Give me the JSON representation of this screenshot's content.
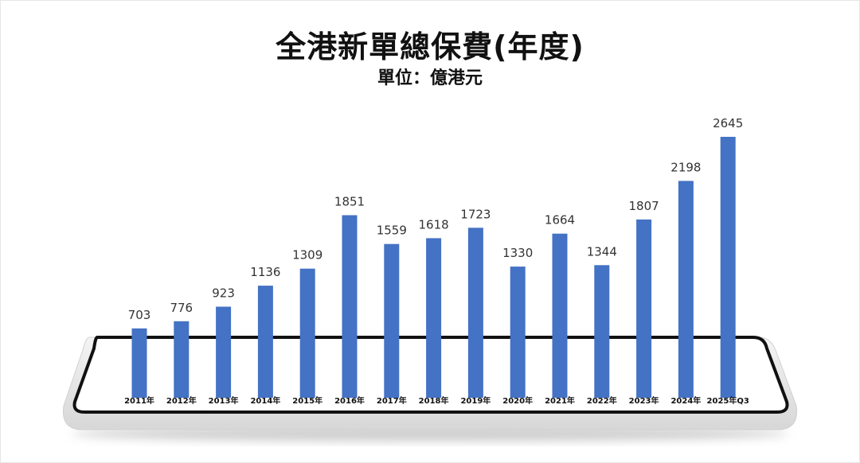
{
  "chart_data": {
    "type": "bar",
    "title": "全港新單總保費(年度)",
    "subtitle": "單位：億港元",
    "categories": [
      "2011年",
      "2012年",
      "2013年",
      "2014年",
      "2015年",
      "2016年",
      "2017年",
      "2018年",
      "2019年",
      "2020年",
      "2021年",
      "2022年",
      "2023年",
      "2024年",
      "2025年Q3"
    ],
    "values": [
      703,
      776,
      923,
      1136,
      1309,
      1851,
      1559,
      1618,
      1723,
      1330,
      1664,
      1344,
      1807,
      2198,
      2645
    ],
    "value_labels": [
      "703",
      "776",
      "923",
      "1136",
      "1309",
      "1851",
      "1559",
      "1618",
      "1723",
      "1330",
      "1664",
      "1344",
      "1807",
      "2198",
      "2645"
    ],
    "ylim": [
      0,
      2900
    ],
    "grid": false,
    "bar_color": "#4472c4"
  }
}
